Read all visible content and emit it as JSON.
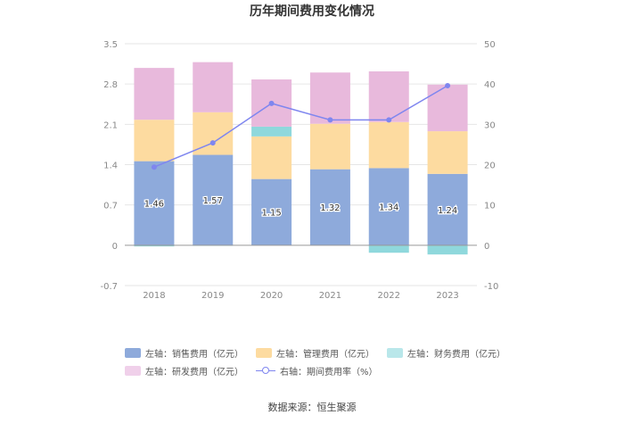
{
  "chart_data": {
    "type": "bar",
    "title": "历年期间费用变化情况",
    "categories": [
      "2018",
      "2019",
      "2020",
      "2021",
      "2022",
      "2023"
    ],
    "y_left": {
      "ticks": [
        "3.5",
        "2.8",
        "2.1",
        "1.4",
        "0.7",
        "0",
        "-0.7"
      ],
      "range": [
        -0.7,
        3.5
      ]
    },
    "y_right": {
      "ticks": [
        "50",
        "40",
        "30",
        "20",
        "10",
        "0",
        "-10"
      ],
      "range": [
        -10,
        50
      ]
    },
    "series": [
      {
        "name": "左轴：销售费用（亿元）",
        "stack": true,
        "axis": "left",
        "color": "#8eaadb",
        "values": [
          1.46,
          1.57,
          1.15,
          1.32,
          1.34,
          1.24
        ],
        "labels": [
          "1.46",
          "1.57",
          "1.15",
          "1.32",
          "1.34",
          "1.24"
        ]
      },
      {
        "name": "左轴：管理费用（亿元）",
        "stack": true,
        "axis": "left",
        "color": "#fddba0",
        "values": [
          0.72,
          0.74,
          0.74,
          0.79,
          0.8,
          0.74
        ]
      },
      {
        "name": "左轴：财务费用（亿元）",
        "stack": true,
        "axis": "left",
        "color": "#8fd8dc",
        "values": [
          -0.02,
          -0.01,
          0.17,
          0.0,
          -0.13,
          -0.16
        ]
      },
      {
        "name": "左轴：研发费用（亿元）",
        "stack": true,
        "axis": "left",
        "color": "#e8b9dc",
        "values": [
          0.9,
          0.87,
          0.82,
          0.89,
          0.88,
          0.81
        ]
      },
      {
        "name": "右轴：期间费用率（%）",
        "type": "line",
        "axis": "right",
        "color": "#7f86ef",
        "values": [
          19.4,
          25.4,
          35.2,
          31.1,
          31.1,
          39.6
        ]
      }
    ],
    "grid": true
  },
  "legend": [
    {
      "label": "左轴：销售费用（亿元）",
      "color": "#8eaadb",
      "kind": "box"
    },
    {
      "label": "左轴：管理费用（亿元）",
      "color": "#fddba0",
      "kind": "box"
    },
    {
      "label": "左轴：财务费用（亿元）",
      "color": "#b9e7ea",
      "kind": "box"
    },
    {
      "label": "左轴：研发费用（亿元）",
      "color": "#f0d0ea",
      "kind": "box"
    },
    {
      "label": "右轴：期间费用率（%）",
      "color": "#7f86ef",
      "kind": "line"
    }
  ],
  "source": "数据来源：恒生聚源"
}
